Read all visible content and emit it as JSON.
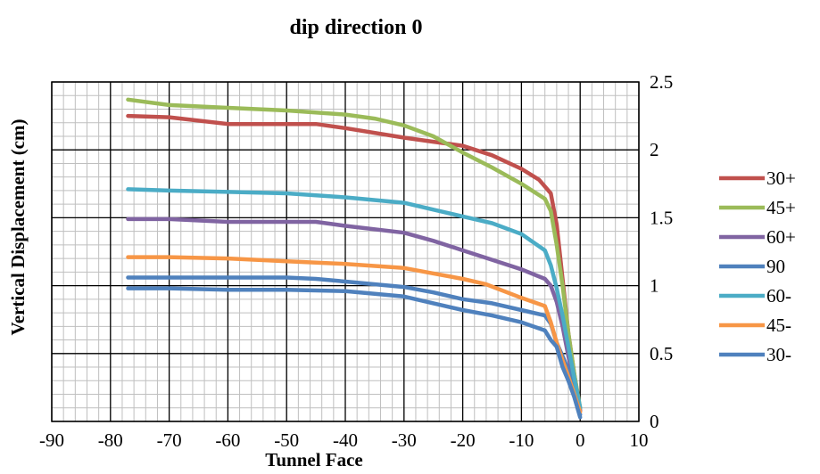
{
  "chart_data": {
    "type": "line",
    "title": "dip direction 0",
    "xlabel": "Tunnel Face",
    "ylabel": "Vertical Displacement (cm)",
    "xlim": [
      -90,
      10
    ],
    "ylim": [
      0,
      2.5
    ],
    "x_ticks": [
      "-90",
      "-80",
      "-70",
      "-60",
      "-50",
      "-40",
      "-30",
      "-20",
      "-10",
      "0",
      "10"
    ],
    "y_ticks": [
      "0",
      "0.5",
      "1",
      "1.5",
      "2",
      "2.5"
    ],
    "y_axis_side": "right",
    "grid": "major and minor",
    "legend_position": "right",
    "series": [
      {
        "name": "30+",
        "color": "#c0504d",
        "x": [
          -77,
          -70,
          -60,
          -50,
          -45,
          -40,
          -30,
          -25,
          -20,
          -15,
          -10,
          -7,
          -5,
          -4,
          -3,
          -2,
          -1,
          0
        ],
        "y": [
          2.25,
          2.24,
          2.19,
          2.19,
          2.19,
          2.16,
          2.09,
          2.06,
          2.03,
          1.96,
          1.86,
          1.78,
          1.68,
          1.45,
          1.05,
          0.65,
          0.35,
          0.08
        ]
      },
      {
        "name": "45+",
        "color": "#9bbb59",
        "x": [
          -77,
          -70,
          -60,
          -50,
          -40,
          -35,
          -30,
          -25,
          -20,
          -15,
          -10,
          -6,
          -5,
          -4,
          -3,
          -2,
          -1,
          0
        ],
        "y": [
          2.37,
          2.33,
          2.31,
          2.29,
          2.26,
          2.23,
          2.18,
          2.1,
          1.98,
          1.87,
          1.75,
          1.64,
          1.55,
          1.3,
          1.0,
          0.65,
          0.35,
          0.1
        ]
      },
      {
        "name": "60+",
        "color": "#8064a2",
        "x": [
          -77,
          -70,
          -60,
          -50,
          -45,
          -40,
          -30,
          -25,
          -20,
          -15,
          -10,
          -6,
          -5,
          -4,
          -3,
          -2,
          -1,
          0
        ],
        "y": [
          1.49,
          1.49,
          1.47,
          1.47,
          1.47,
          1.44,
          1.39,
          1.33,
          1.26,
          1.19,
          1.12,
          1.05,
          1.0,
          0.88,
          0.7,
          0.48,
          0.28,
          0.08
        ]
      },
      {
        "name": "90",
        "color": "#4f81bd",
        "x": [
          -77,
          -70,
          -60,
          -50,
          -45,
          -40,
          -30,
          -25,
          -20,
          -15,
          -10,
          -6,
          -5,
          -4,
          -3,
          -2,
          -1,
          0
        ],
        "y": [
          1.06,
          1.06,
          1.06,
          1.06,
          1.05,
          1.03,
          0.99,
          0.95,
          0.9,
          0.87,
          0.82,
          0.78,
          0.72,
          0.58,
          0.48,
          0.38,
          0.22,
          0.05
        ]
      },
      {
        "name": "60-",
        "color": "#4bacc6",
        "x": [
          -77,
          -70,
          -60,
          -50,
          -40,
          -30,
          -25,
          -20,
          -15,
          -10,
          -6,
          -5,
          -4,
          -3,
          -2,
          -1,
          0
        ],
        "y": [
          1.71,
          1.7,
          1.69,
          1.68,
          1.65,
          1.61,
          1.56,
          1.51,
          1.46,
          1.38,
          1.26,
          1.15,
          0.98,
          0.78,
          0.55,
          0.32,
          0.1
        ]
      },
      {
        "name": "45-",
        "color": "#f79646",
        "x": [
          -77,
          -70,
          -60,
          -50,
          -40,
          -30,
          -25,
          -20,
          -16,
          -10,
          -6,
          -5,
          -4,
          -3,
          -2,
          -1,
          0
        ],
        "y": [
          1.21,
          1.21,
          1.2,
          1.18,
          1.16,
          1.13,
          1.09,
          1.05,
          1.01,
          0.91,
          0.85,
          0.73,
          0.58,
          0.45,
          0.33,
          0.2,
          0.07
        ]
      },
      {
        "name": "30-",
        "color": "#4f81bd",
        "x": [
          -77,
          -70,
          -60,
          -50,
          -40,
          -30,
          -25,
          -20,
          -15,
          -10,
          -6,
          -5,
          -4,
          -3,
          -2,
          -1,
          0
        ],
        "y": [
          0.98,
          0.98,
          0.97,
          0.97,
          0.96,
          0.92,
          0.87,
          0.82,
          0.78,
          0.73,
          0.67,
          0.6,
          0.55,
          0.4,
          0.3,
          0.18,
          0.03
        ]
      }
    ]
  }
}
